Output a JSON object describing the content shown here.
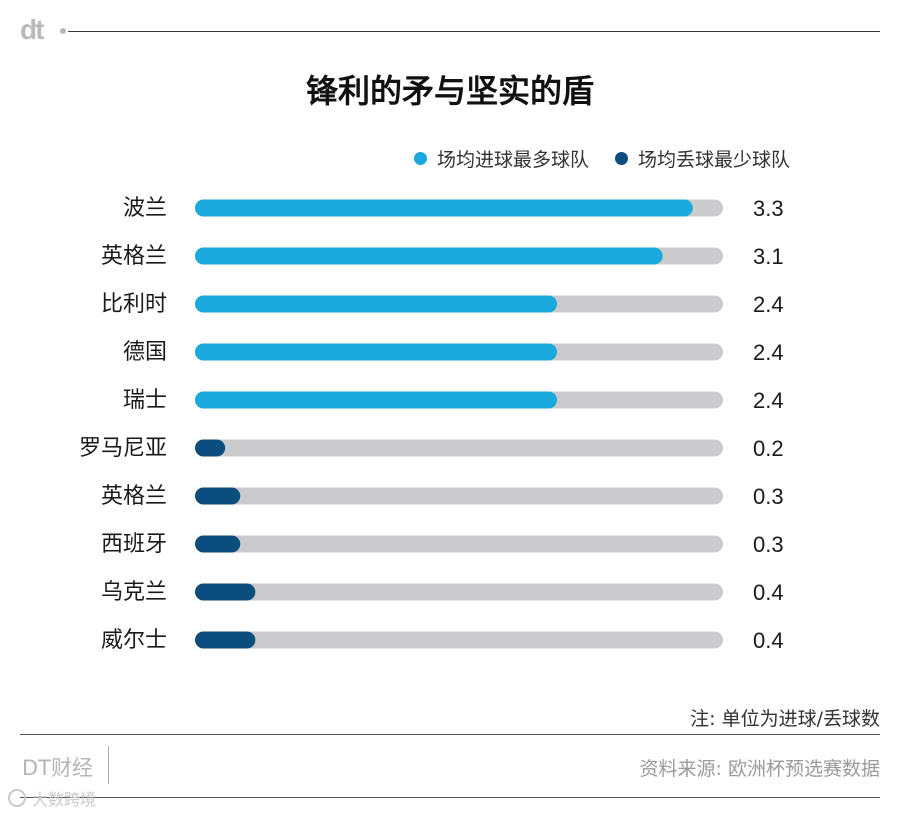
{
  "header": {
    "logo": "dt"
  },
  "chart_data": {
    "type": "bar",
    "orientation": "horizontal",
    "title": "锋利的矛与坚实的盾",
    "legend": [
      {
        "label": "场均进球最多球队",
        "color": "#1aa8dd"
      },
      {
        "label": "场均丢球最少球队",
        "color": "#0c4d7f"
      }
    ],
    "legend_position": "top-right",
    "track_color": "#cbcbcd",
    "xlim": [
      0,
      3.5
    ],
    "grid": false,
    "categories": [
      "波兰",
      "英格兰",
      "比利时",
      "德国",
      "瑞士",
      "罗马尼亚",
      "英格兰",
      "西班牙",
      "乌克兰",
      "威尔士"
    ],
    "value_labels": [
      "3.3",
      "3.1",
      "2.4",
      "2.4",
      "2.4",
      "0.2",
      "0.3",
      "0.3",
      "0.4",
      "0.4"
    ],
    "series": [
      {
        "name": "场均进球最多球队",
        "values": [
          3.3,
          3.1,
          2.4,
          2.4,
          2.4,
          null,
          null,
          null,
          null,
          null
        ]
      },
      {
        "name": "场均丢球最少球队",
        "values": [
          null,
          null,
          null,
          null,
          null,
          0.2,
          0.3,
          0.3,
          0.4,
          0.4
        ]
      }
    ]
  },
  "footer": {
    "note": "注: 单位为进球/丢球数",
    "brand": "DT财经",
    "source": "资料来源: 欧洲杯预选赛数据",
    "watermark": "大数跨境"
  }
}
